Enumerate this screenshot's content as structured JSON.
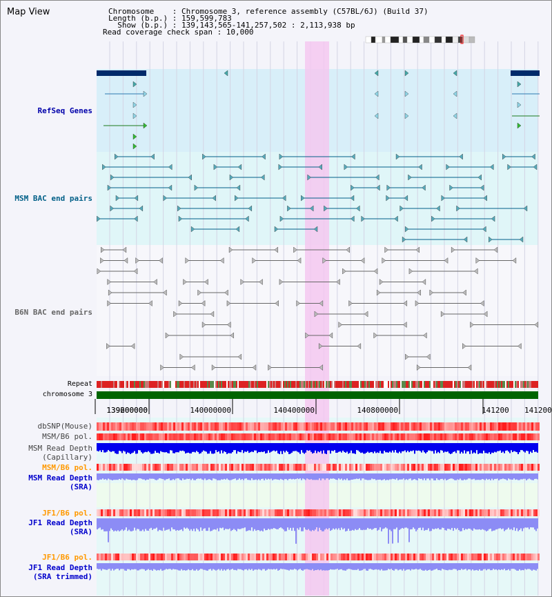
{
  "header": {
    "title": "Map View",
    "info_lines": [
      "Chromosome    : Chromosome 3, reference assembly (C57BL/6J) (Build 37)",
      "Length (b.p.) : 159,599,783",
      "  Show (b.p.) : 139,143,565-141,257,502 : 2,113,938 bp",
      "Read coverage check span : 10,000"
    ]
  },
  "tracks": {
    "refseq": {
      "label": "RefSeq Genes",
      "color": "#0000aa"
    },
    "msm_bac": {
      "label": "MSM BAC end pairs",
      "color": "#005f87"
    },
    "b6n_bac": {
      "label": "B6N BAC end pairs",
      "color": "#666666"
    },
    "repeat": {
      "label": "Repeat"
    },
    "chromosome": {
      "label": "chromosome 3"
    },
    "axis_ticks": [
      "139200000",
      "139600000",
      "140000000",
      "140400000",
      "140800000",
      "141200"
    ],
    "dbsnp": {
      "label": "dbSNP(Mouse)"
    },
    "msm_b6_pol_cap": {
      "label": "MSM/B6 pol."
    },
    "msm_depth_cap": {
      "label": "MSM Read Depth\n(Capillary)"
    },
    "msm_b6_pol_sra": {
      "label": "MSM/B6 pol.",
      "color": "#ff9900"
    },
    "msm_depth_sra": {
      "label": "MSM Read Depth\n(SRA)",
      "color": "#0000cc"
    },
    "jf1_b6_pol": {
      "label": "JF1/B6 pol.",
      "color": "#ff9900"
    },
    "jf1_depth": {
      "label": "JF1 Read Depth\n(SRA)",
      "color": "#0000cc"
    },
    "jf1_b6_pol_trim": {
      "label": "JF1/B6 pol.",
      "color": "#ff9900"
    },
    "jf1_depth_trim": {
      "label": "JF1 Read Depth\n(SRA trimmed)",
      "color": "#0000cc"
    }
  },
  "colors": {
    "highlight": "#f5c8f0",
    "refseq_bg": "#d8eff9",
    "msm_bg": "#e0f6f8",
    "gene_dark": "#002a6a",
    "chromosome_bar": "#006400",
    "depth_dark": "#0000ee",
    "depth_light": "#8c8cf5"
  }
}
